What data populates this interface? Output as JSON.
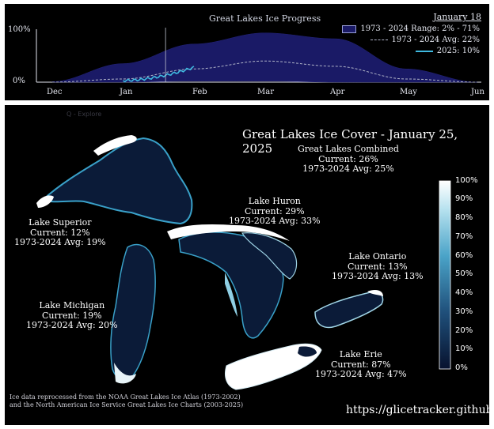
{
  "progress_chart": {
    "title": "Great Lakes Ice Progress",
    "date_link": "January 18",
    "legend": {
      "range": "1973 - 2024 Range: 2% - 71%",
      "avg": "1973 - 2024 Avg: 22%",
      "current": "2025: 10%"
    },
    "y_ticks": [
      "100%",
      "0%"
    ],
    "x_ticks": [
      "Dec",
      "Jan",
      "Feb",
      "Mar",
      "Apr",
      "May",
      "Jun"
    ]
  },
  "chart_data": {
    "type": "area",
    "title": "Great Lakes Ice Progress",
    "x": [
      "Dec",
      "Jan",
      "Feb",
      "Mar",
      "Apr",
      "May",
      "Jun"
    ],
    "ylim": [
      0,
      100
    ],
    "series": [
      {
        "name": "1973 - 2024 Range: 2% - 71%",
        "upper": [
          1,
          35,
          72,
          93,
          82,
          25,
          0
        ],
        "lower": [
          0,
          0,
          2,
          2,
          0,
          0,
          0
        ]
      },
      {
        "name": "1973 - 2024 Avg: 22%",
        "values": [
          0,
          6,
          25,
          40,
          30,
          6,
          0
        ]
      },
      {
        "name": "2025: 10%",
        "values": [
          null,
          3,
          28,
          null,
          null,
          null,
          null
        ]
      }
    ],
    "grid": false,
    "legend_position": "top-right"
  },
  "map": {
    "toolbar_text": "Q - Explore",
    "title": "Great Lakes Ice Cover - January 25, 2025",
    "combined": {
      "name": "Great Lakes Combined",
      "current": "Current: 26%",
      "avg": "1973-2024 Avg: 25%"
    },
    "lakes": [
      {
        "name": "Lake Superior",
        "current": "Current: 12%",
        "avg": "1973-2024 Avg: 19%"
      },
      {
        "name": "Lake Huron",
        "current": "Current: 29%",
        "avg": "1973-2024 Avg: 33%"
      },
      {
        "name": "Lake Michigan",
        "current": "Current: 19%",
        "avg": "1973-2024 Avg: 20%"
      },
      {
        "name": "Lake Ontario",
        "current": "Current: 13%",
        "avg": "1973-2024 Avg: 13%"
      },
      {
        "name": "Lake Erie",
        "current": "Current: 87%",
        "avg": "1973-2024 Avg: 47%"
      }
    ],
    "colorbar_ticks": [
      "100%",
      "90%",
      "80%",
      "70%",
      "60%",
      "50%",
      "40%",
      "30%",
      "20%",
      "10%",
      "0%"
    ],
    "source_line1": "Ice data reprocessed from the NOAA Great Lakes Ice Atlas (1973-2002)",
    "source_line2": "and the North American Ice Service Great Lakes Ice Charts (2003-2025)",
    "url": "https://glicetracker.github.io"
  },
  "colors": {
    "range_fill": "#1a1a66",
    "avg_line": "#b0b4c8",
    "current_line": "#3fb9e0",
    "lake_base": "#0b1b38",
    "ice": "#ffffff"
  }
}
